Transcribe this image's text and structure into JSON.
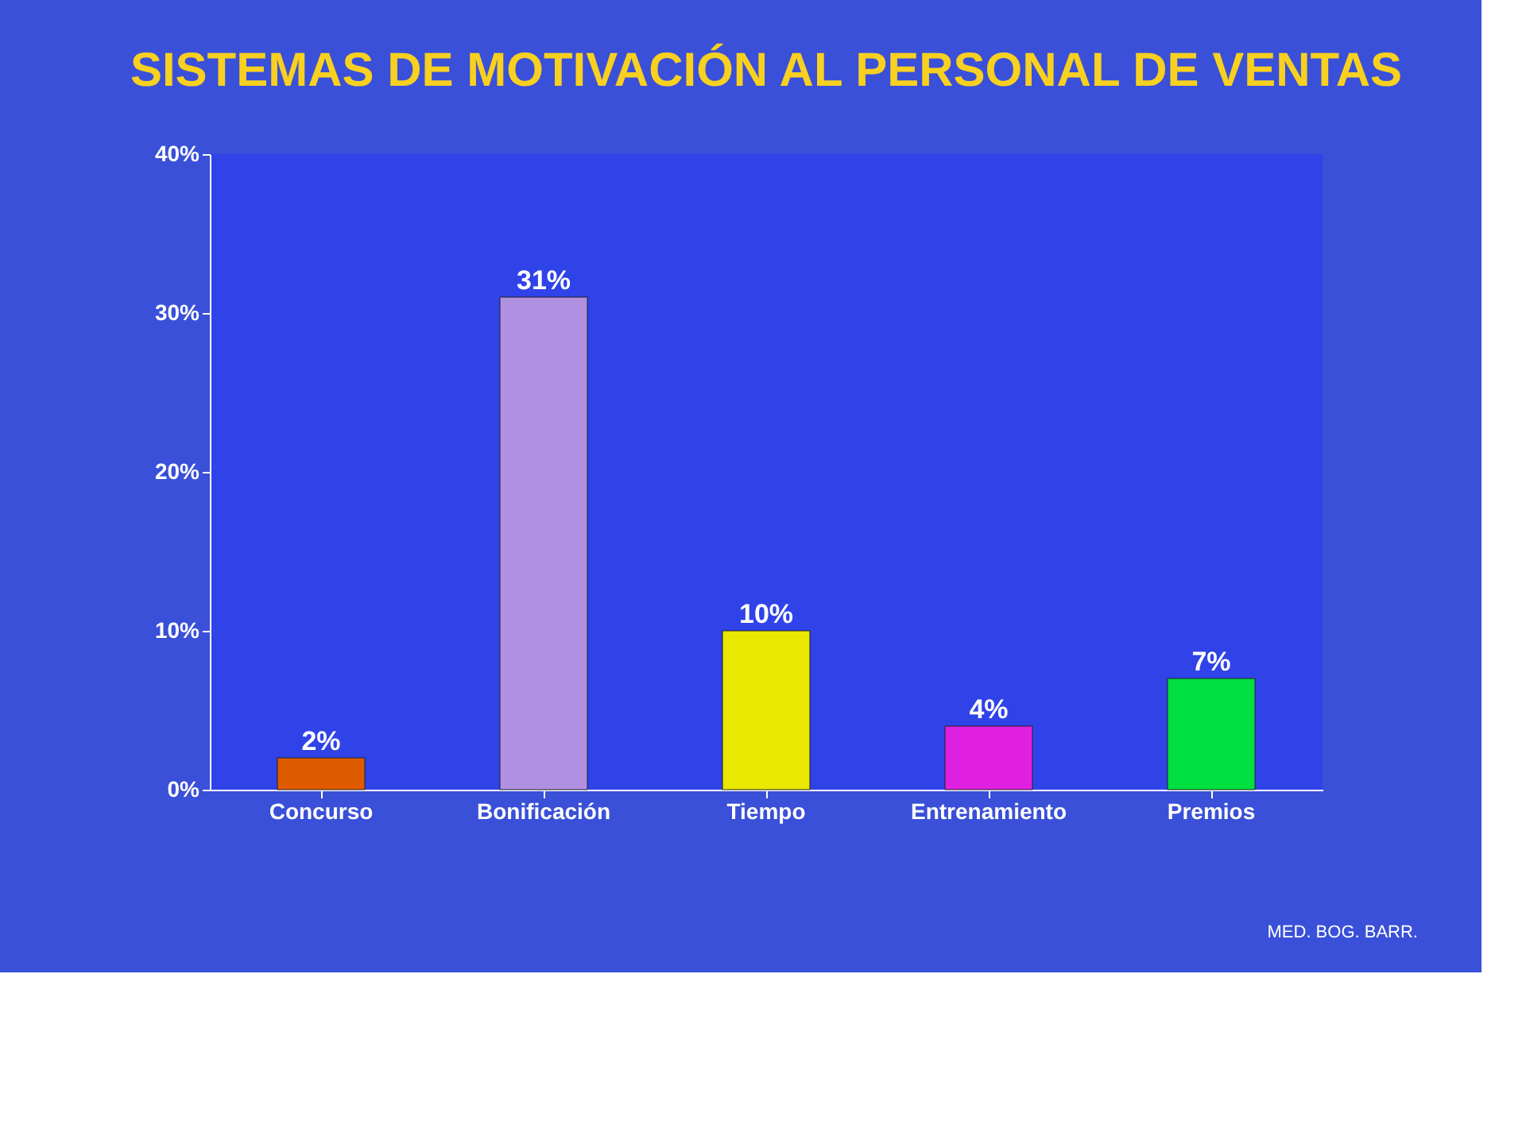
{
  "chart_data": {
    "type": "bar",
    "title": "SISTEMAS DE MOTIVACIÓN AL PERSONAL DE VENTAS",
    "categories": [
      "Concurso",
      "Bonificación",
      "Tiempo",
      "Entrenamiento",
      "Premios"
    ],
    "values": [
      2,
      31,
      10,
      4,
      7
    ],
    "colors": [
      "#e05a00",
      "#b090e0",
      "#e8e800",
      "#e020e0",
      "#00e040"
    ],
    "value_labels": [
      "2%",
      "31%",
      "10%",
      "4%",
      "7%"
    ],
    "ylim": [
      0,
      40
    ],
    "yticks": [
      {
        "value": 0,
        "label": "0%"
      },
      {
        "value": 10,
        "label": "10%"
      },
      {
        "value": 20,
        "label": "20%"
      },
      {
        "value": 30,
        "label": "30%"
      },
      {
        "value": 40,
        "label": "40%"
      }
    ],
    "grid": false,
    "annotations": [
      "MED. BOG. BARR."
    ]
  }
}
